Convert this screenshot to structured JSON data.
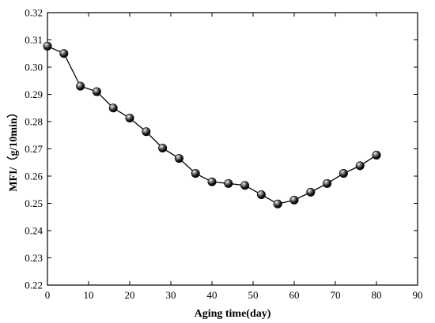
{
  "chart_data": {
    "type": "line",
    "xlabel": "Aging time(day)",
    "ylabel": "MFI/（g/10min）",
    "xlim": [
      0,
      90
    ],
    "ylim": [
      0.22,
      0.32
    ],
    "xticks": [
      0,
      10,
      20,
      30,
      40,
      50,
      60,
      70,
      80,
      90
    ],
    "yticks": [
      0.22,
      0.23,
      0.24,
      0.25,
      0.26,
      0.27,
      0.28,
      0.29,
      0.3,
      0.31,
      0.32
    ],
    "xtick_labels": [
      "0",
      "10",
      "20",
      "30",
      "40",
      "50",
      "60",
      "70",
      "80",
      "90"
    ],
    "ytick_labels": [
      "0.22",
      "0.23",
      "0.24",
      "0.25",
      "0.26",
      "0.27",
      "0.28",
      "0.29",
      "0.30",
      "0.31",
      "0.32"
    ],
    "grid": false,
    "series": [
      {
        "marker": "sphere",
        "color": "#000000",
        "x": [
          0,
          4,
          8,
          12,
          16,
          20,
          24,
          28,
          32,
          36,
          40,
          44,
          48,
          52,
          56,
          60,
          64,
          68,
          72,
          76,
          80
        ],
        "y": [
          0.3077,
          0.305,
          0.293,
          0.291,
          0.285,
          0.2813,
          0.2763,
          0.2703,
          0.2665,
          0.261,
          0.2579,
          0.2573,
          0.2566,
          0.2532,
          0.2498,
          0.2512,
          0.2541,
          0.2573,
          0.261,
          0.2638,
          0.2677
        ]
      }
    ]
  }
}
